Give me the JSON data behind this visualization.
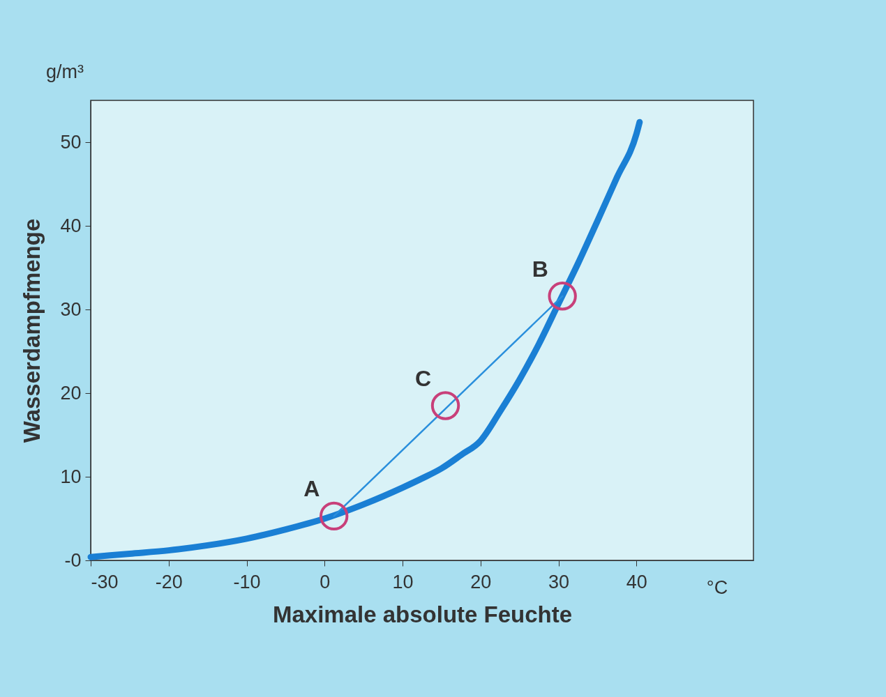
{
  "chart_data": {
    "type": "line",
    "xlabel": "Maximale absolute Feuchte",
    "ylabel": "Wasserdampfmenge",
    "xlim": [
      -30,
      55
    ],
    "xticks": [
      -30,
      -20,
      -10,
      0,
      10,
      20,
      30,
      40
    ],
    "ylim": [
      0,
      55
    ],
    "yticks": [
      {
        "value": 0,
        "label": "-0"
      },
      10,
      20,
      30,
      40,
      50
    ],
    "grid": false,
    "series": [
      {
        "color": "#1a7fd4",
        "x": [
          -30,
          -25,
          -20,
          -15,
          -10,
          -5,
          0,
          5,
          10,
          12.5,
          15,
          17.5,
          20,
          22.5,
          25,
          27.5,
          30,
          32.5,
          35,
          37.5,
          40,
          40.4
        ],
        "values": [
          0.4,
          0.8,
          1.2,
          1.8,
          2.6,
          3.7,
          5,
          6.7,
          8.7,
          9.8,
          11,
          12.6,
          14.3,
          17.8,
          21.6,
          25.9,
          30.7,
          35.5,
          40.6,
          45.8,
          51,
          52.4
        ]
      },
      {
        "type": "line",
        "color": "#2a8fdc",
        "x": [
          1.2,
          30.5
        ],
        "values": [
          5.3,
          31.6
        ]
      },
      {
        "type": "scatter",
        "marker": "circle",
        "color": "#c8407a",
        "x": [
          1.2,
          30.5,
          15.5
        ],
        "values": [
          5.3,
          31.6,
          18.5
        ]
      }
    ],
    "annotations": [
      "g/m³",
      "°C",
      {
        "text": "A",
        "x": 1.2,
        "y": 5.3
      },
      {
        "text": "B",
        "x": 30.5,
        "y": 31.6
      },
      {
        "text": "C",
        "x": 15.5,
        "y": 18.5
      }
    ]
  }
}
